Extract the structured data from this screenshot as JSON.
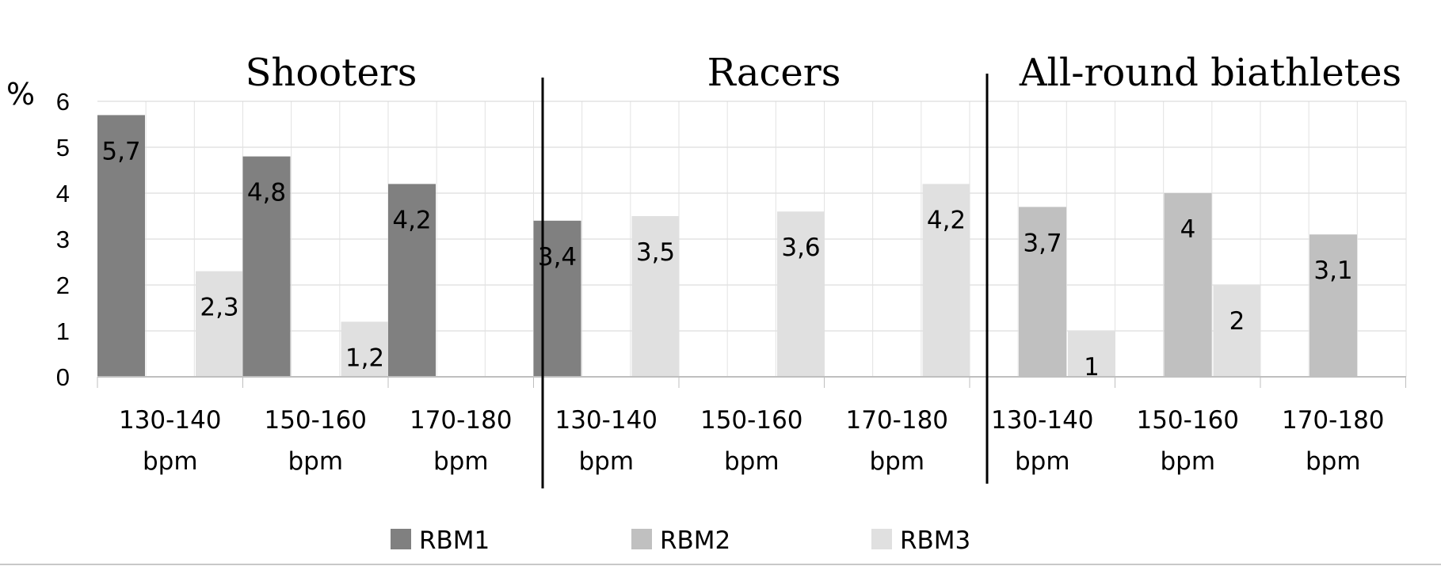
{
  "chart_data": {
    "type": "bar",
    "ylabel": "%",
    "ylim": [
      0,
      6
    ],
    "yticks": [
      "0",
      "1",
      "2",
      "3",
      "4",
      "5",
      "6"
    ],
    "grid": true,
    "legend_position": "bottom",
    "groups": [
      {
        "title": "Shooters",
        "categories": [
          {
            "line1": "130-140",
            "line2": "bpm"
          },
          {
            "line1": "150-160",
            "line2": "bpm"
          },
          {
            "line1": "170-180",
            "line2": "bpm"
          }
        ],
        "values": {
          "RBM1": [
            5.7,
            4.8,
            4.2
          ],
          "RBM2": [
            null,
            null,
            null
          ],
          "RBM3": [
            2.3,
            1.2,
            null
          ]
        },
        "labels": {
          "RBM1": [
            "5,7",
            "4,8",
            "4,2"
          ],
          "RBM2": [
            null,
            null,
            null
          ],
          "RBM3": [
            "2,3",
            "1,2",
            null
          ]
        }
      },
      {
        "title": "Racers",
        "categories": [
          {
            "line1": "130-140",
            "line2": "bpm"
          },
          {
            "line1": "150-160",
            "line2": "bpm"
          },
          {
            "line1": "170-180",
            "line2": "bpm"
          }
        ],
        "values": {
          "RBM1": [
            3.4,
            null,
            null
          ],
          "RBM2": [
            null,
            null,
            null
          ],
          "RBM3": [
            3.5,
            3.6,
            4.2
          ]
        },
        "labels": {
          "RBM1": [
            "3,4",
            null,
            null
          ],
          "RBM2": [
            null,
            null,
            null
          ],
          "RBM3": [
            "3,5",
            "3,6",
            "4,2"
          ]
        }
      },
      {
        "title": "All-round biathletes",
        "categories": [
          {
            "line1": "130-140",
            "line2": "bpm"
          },
          {
            "line1": "150-160",
            "line2": "bpm"
          },
          {
            "line1": "170-180",
            "line2": "bpm"
          }
        ],
        "values": {
          "RBM1": [
            null,
            null,
            null
          ],
          "RBM2": [
            3.7,
            4,
            3.1
          ],
          "RBM3": [
            1,
            2,
            null
          ]
        },
        "labels": {
          "RBM1": [
            null,
            null,
            null
          ],
          "RBM2": [
            "3,7",
            "4",
            "3,1"
          ],
          "RBM3": [
            "1",
            "2",
            null
          ]
        }
      }
    ],
    "series": [
      {
        "name": "RBM1",
        "color": "#808080"
      },
      {
        "name": "RBM2",
        "color": "#c0c0c0"
      },
      {
        "name": "RBM3",
        "color": "#e0e0e0"
      }
    ]
  }
}
